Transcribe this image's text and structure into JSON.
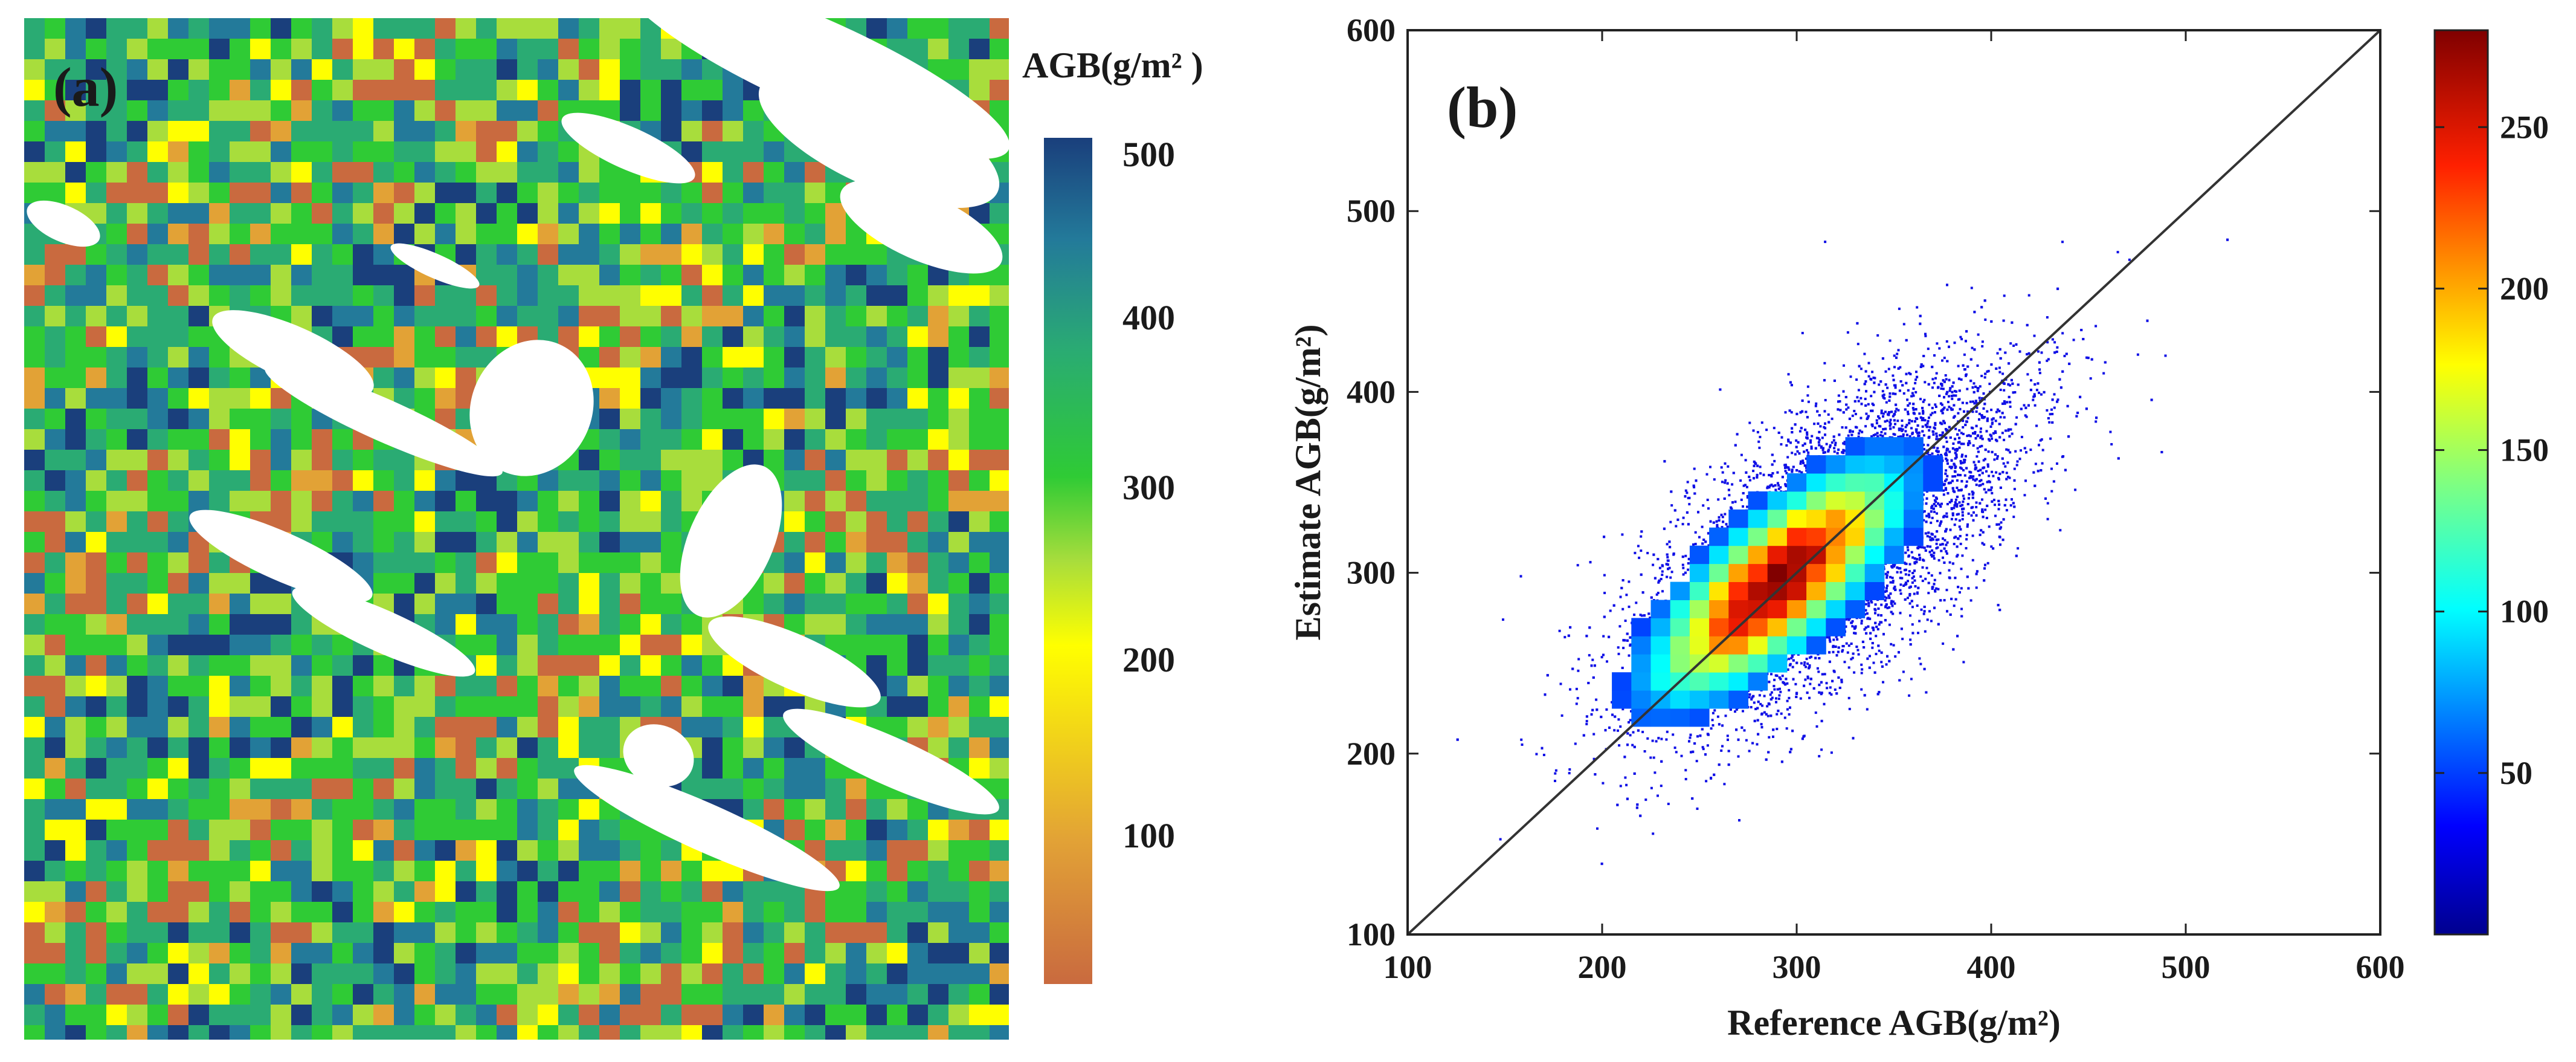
{
  "panel_a": {
    "label": "(a)",
    "colorbar_title": "AGB(g/m² )",
    "colorbar_ticks": [
      "500",
      "400",
      "300",
      "200",
      "100"
    ],
    "colors": [
      "#c96a3f",
      "#e2a236",
      "#ffff00",
      "#a8dd3c",
      "#2fcb35",
      "#2aab73",
      "#237a9a",
      "#1a3f7c"
    ]
  },
  "panel_b": {
    "label": "(b)",
    "colorbar_ticks": [
      "250",
      "200",
      "150",
      "100",
      "50"
    ]
  },
  "chart_data": [
    {
      "type": "heatmap",
      "title": "(a)",
      "colorbar_label": "AGB(g/m² )",
      "colorbar_range": [
        0,
        500
      ],
      "colorbar_ticks": [
        100,
        200,
        300,
        400,
        500
      ],
      "description_values": "spatial map of above-ground biomass, mostly 250-450 g/m², white = no data"
    },
    {
      "type": "scatter",
      "title": "(b)",
      "xlabel": "Reference AGB(g/m²)",
      "ylabel": "Estimate AGB(g/m²)",
      "xlim": [
        100,
        600
      ],
      "ylim": [
        100,
        600
      ],
      "xticks": [
        "100",
        "200",
        "300",
        "400",
        "500",
        "600"
      ],
      "yticks": [
        "100",
        "200",
        "300",
        "400",
        "500",
        "600"
      ],
      "reference_line": {
        "x": [
          100,
          600
        ],
        "y": [
          100,
          600
        ]
      },
      "density_colorbar_range": [
        0,
        280
      ],
      "density_colorbar_ticks": [
        50,
        100,
        150,
        200,
        250
      ],
      "density_peak": {
        "x": 290,
        "y": 295
      },
      "point_cloud": {
        "mean_x": 315,
        "mean_y": 315,
        "sd_major": 62,
        "sd_minor": 28,
        "n_points": 9000
      }
    }
  ]
}
